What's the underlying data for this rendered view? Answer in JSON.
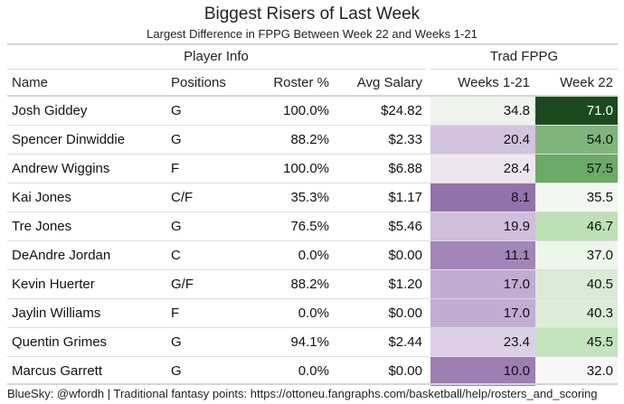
{
  "title": "Biggest Risers of Last Week",
  "subtitle": "Largest Difference in FPPG Between Week 22 and Weeks 1-21",
  "groups": {
    "player_info": "Player Info",
    "trad_fppg": "Trad FPPG"
  },
  "columns": {
    "name": "Name",
    "positions": "Positions",
    "roster": "Roster %",
    "salary": "Avg Salary",
    "weeks": "Weeks 1-21",
    "week22": "Week 22"
  },
  "rows": [
    {
      "name": "Josh Giddey",
      "positions": "G",
      "roster": "100.0%",
      "salary": "$24.82",
      "weeks": "34.8",
      "week22": "71.0",
      "weeks_color": "#eef3ec",
      "week22_color": "#1c4a1f",
      "week22_text": "#ffffff"
    },
    {
      "name": "Spencer Dinwiddie",
      "positions": "G",
      "roster": "88.2%",
      "salary": "$2.33",
      "weeks": "20.4",
      "week22": "54.0",
      "weeks_color": "#d2c3de",
      "week22_color": "#7fb57a",
      "week22_text": "#111111"
    },
    {
      "name": "Andrew Wiggins",
      "positions": "F",
      "roster": "100.0%",
      "salary": "$6.88",
      "weeks": "28.4",
      "week22": "57.5",
      "weeks_color": "#ede6f0",
      "week22_color": "#6ba966",
      "week22_text": "#111111"
    },
    {
      "name": "Kai Jones",
      "positions": "C/F",
      "roster": "35.3%",
      "salary": "$1.17",
      "weeks": "8.1",
      "week22": "35.5",
      "weeks_color": "#9272ab",
      "week22_color": "#f3f7f2",
      "week22_text": "#111111"
    },
    {
      "name": "Tre Jones",
      "positions": "G",
      "roster": "76.5%",
      "salary": "$5.46",
      "weeks": "19.9",
      "week22": "46.7",
      "weeks_color": "#cfbedc",
      "week22_color": "#bde0b6",
      "week22_text": "#111111"
    },
    {
      "name": "DeAndre Jordan",
      "positions": "C",
      "roster": "0.0%",
      "salary": "$0.00",
      "weeks": "11.1",
      "week22": "37.0",
      "weeks_color": "#a286b8",
      "week22_color": "#eef5ec",
      "week22_text": "#111111"
    },
    {
      "name": "Kevin Huerter",
      "positions": "G/F",
      "roster": "88.2%",
      "salary": "$1.20",
      "weeks": "17.0",
      "week22": "40.5",
      "weeks_color": "#c2acd3",
      "week22_color": "#d9ebd5",
      "week22_text": "#111111"
    },
    {
      "name": "Jaylin Williams",
      "positions": "F",
      "roster": "0.0%",
      "salary": "$0.00",
      "weeks": "17.0",
      "week22": "40.3",
      "weeks_color": "#c2acd3",
      "week22_color": "#dbecd7",
      "week22_text": "#111111"
    },
    {
      "name": "Quentin Grimes",
      "positions": "G",
      "roster": "94.1%",
      "salary": "$2.44",
      "weeks": "23.4",
      "week22": "45.5",
      "weeks_color": "#ddd0e6",
      "week22_color": "#c3e3bc",
      "week22_text": "#111111"
    },
    {
      "name": "Marcus Garrett",
      "positions": "G",
      "roster": "0.0%",
      "salary": "$0.00",
      "weeks": "10.0",
      "week22": "32.0",
      "weeks_color": "#9d7fb4",
      "week22_color": "#f7f7f7",
      "week22_text": "#111111"
    }
  ],
  "footer": "BlueSky: @wfordh | Traditional fantasy points: https://ottoneu.fangraphs.com/basketball/help/rosters_and_scoring"
}
